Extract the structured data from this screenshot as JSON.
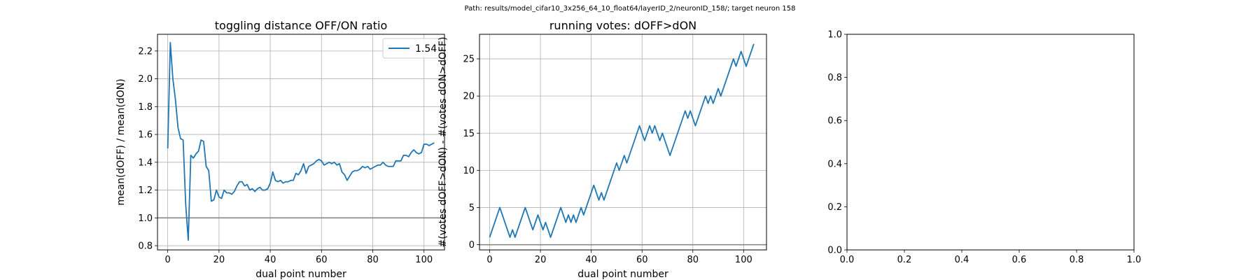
{
  "suptitle": "Path: results/model_cifar10_3x256_64_10_float64/layerID_2/neuronID_158/; target neuron 158",
  "chart_data": [
    {
      "type": "line",
      "title": "toggling distance OFF/ON ratio",
      "xlabel": "dual point number",
      "ylabel": "mean(dOFF) / mean(dON)",
      "xlim": [
        -4,
        108
      ],
      "ylim": [
        0.77,
        2.32
      ],
      "xticks": [
        0,
        20,
        40,
        60,
        80,
        100
      ],
      "yticks": [
        0.8,
        1.0,
        1.2,
        1.4,
        1.6,
        1.8,
        2.0,
        2.2
      ],
      "ytick_format": "1",
      "grid": true,
      "legend": "top-right",
      "hline": {
        "y": 1.0,
        "color": "#808080"
      },
      "color": "#1f77b4",
      "series": [
        {
          "name": "1.54",
          "x": [
            0,
            1,
            2,
            3,
            4,
            5,
            6,
            7,
            8,
            9,
            10,
            11,
            12,
            13,
            14,
            15,
            16,
            17,
            18,
            19,
            20,
            21,
            22,
            23,
            24,
            25,
            26,
            27,
            28,
            29,
            30,
            31,
            32,
            33,
            34,
            35,
            36,
            37,
            38,
            39,
            40,
            41,
            42,
            43,
            44,
            45,
            46,
            47,
            48,
            49,
            50,
            51,
            52,
            53,
            54,
            55,
            56,
            57,
            58,
            59,
            60,
            61,
            62,
            63,
            64,
            65,
            66,
            67,
            68,
            69,
            70,
            71,
            72,
            73,
            74,
            75,
            76,
            77,
            78,
            79,
            80,
            81,
            82,
            83,
            84,
            85,
            86,
            87,
            88,
            89,
            90,
            91,
            92,
            93,
            94,
            95,
            96,
            97,
            98,
            99,
            100,
            101,
            102,
            103,
            104
          ],
          "y": [
            1.5,
            2.26,
            2.0,
            1.85,
            1.65,
            1.57,
            1.56,
            1.1,
            0.84,
            1.45,
            1.43,
            1.46,
            1.48,
            1.56,
            1.55,
            1.37,
            1.34,
            1.12,
            1.13,
            1.2,
            1.15,
            1.14,
            1.2,
            1.18,
            1.18,
            1.17,
            1.19,
            1.23,
            1.26,
            1.26,
            1.23,
            1.24,
            1.2,
            1.21,
            1.19,
            1.21,
            1.22,
            1.2,
            1.2,
            1.21,
            1.25,
            1.33,
            1.27,
            1.26,
            1.27,
            1.25,
            1.26,
            1.26,
            1.27,
            1.27,
            1.32,
            1.31,
            1.34,
            1.39,
            1.32,
            1.37,
            1.38,
            1.39,
            1.41,
            1.42,
            1.41,
            1.38,
            1.39,
            1.4,
            1.39,
            1.4,
            1.38,
            1.39,
            1.33,
            1.31,
            1.27,
            1.3,
            1.33,
            1.34,
            1.34,
            1.35,
            1.37,
            1.36,
            1.37,
            1.35,
            1.36,
            1.37,
            1.38,
            1.38,
            1.4,
            1.38,
            1.37,
            1.37,
            1.37,
            1.41,
            1.41,
            1.41,
            1.45,
            1.45,
            1.44,
            1.47,
            1.49,
            1.47,
            1.46,
            1.47,
            1.53,
            1.53,
            1.52,
            1.53,
            1.54
          ]
        }
      ]
    },
    {
      "type": "line",
      "title": "running votes: dOFF>dON",
      "xlabel": "dual point number",
      "ylabel": "#(votes dOFF>dON) - #(votes dON>dOFF)",
      "xlim": [
        -4,
        109
      ],
      "ylim": [
        -0.7,
        28.3
      ],
      "xticks": [
        0,
        20,
        40,
        60,
        80,
        100
      ],
      "yticks": [
        0,
        5,
        10,
        15,
        20,
        25
      ],
      "ytick_format": "0",
      "grid": true,
      "hline": {
        "y": 0,
        "color": "#808080"
      },
      "color": "#1f77b4",
      "series": [
        {
          "x": [
            0,
            1,
            2,
            3,
            4,
            5,
            6,
            7,
            8,
            9,
            10,
            11,
            12,
            13,
            14,
            15,
            16,
            17,
            18,
            19,
            20,
            21,
            22,
            23,
            24,
            25,
            26,
            27,
            28,
            29,
            30,
            31,
            32,
            33,
            34,
            35,
            36,
            37,
            38,
            39,
            40,
            41,
            42,
            43,
            44,
            45,
            46,
            47,
            48,
            49,
            50,
            51,
            52,
            53,
            54,
            55,
            56,
            57,
            58,
            59,
            60,
            61,
            62,
            63,
            64,
            65,
            66,
            67,
            68,
            69,
            70,
            71,
            72,
            73,
            74,
            75,
            76,
            77,
            78,
            79,
            80,
            81,
            82,
            83,
            84,
            85,
            86,
            87,
            88,
            89,
            90,
            91,
            92,
            93,
            94,
            95,
            96,
            97,
            98,
            99,
            100,
            101,
            102,
            103,
            104
          ],
          "y": [
            1,
            2,
            3,
            4,
            5,
            4,
            3,
            2,
            1,
            2,
            1,
            2,
            3,
            4,
            5,
            4,
            3,
            2,
            3,
            4,
            3,
            2,
            3,
            2,
            1,
            2,
            3,
            4,
            5,
            4,
            3,
            4,
            3,
            4,
            3,
            4,
            5,
            4,
            5,
            6,
            7,
            8,
            7,
            6,
            7,
            6,
            7,
            8,
            9,
            10,
            11,
            10,
            11,
            12,
            11,
            12,
            13,
            14,
            15,
            16,
            15,
            14,
            15,
            16,
            15,
            16,
            15,
            14,
            15,
            14,
            13,
            12,
            13,
            14,
            15,
            16,
            17,
            18,
            17,
            18,
            17,
            16,
            17,
            18,
            19,
            20,
            19,
            20,
            19,
            20,
            21,
            20,
            21,
            22,
            23,
            24,
            25,
            24,
            25,
            26,
            25,
            24,
            25,
            26,
            27
          ]
        }
      ]
    },
    {
      "type": "line",
      "title": "",
      "xlim": [
        0,
        1
      ],
      "ylim": [
        0,
        1
      ],
      "xticks": [
        0,
        0.2,
        0.4,
        0.6,
        0.8,
        1.0
      ],
      "yticks": [
        0,
        0.2,
        0.4,
        0.6,
        0.8,
        1.0
      ],
      "ytick_format": "1",
      "grid": false,
      "series": []
    }
  ]
}
